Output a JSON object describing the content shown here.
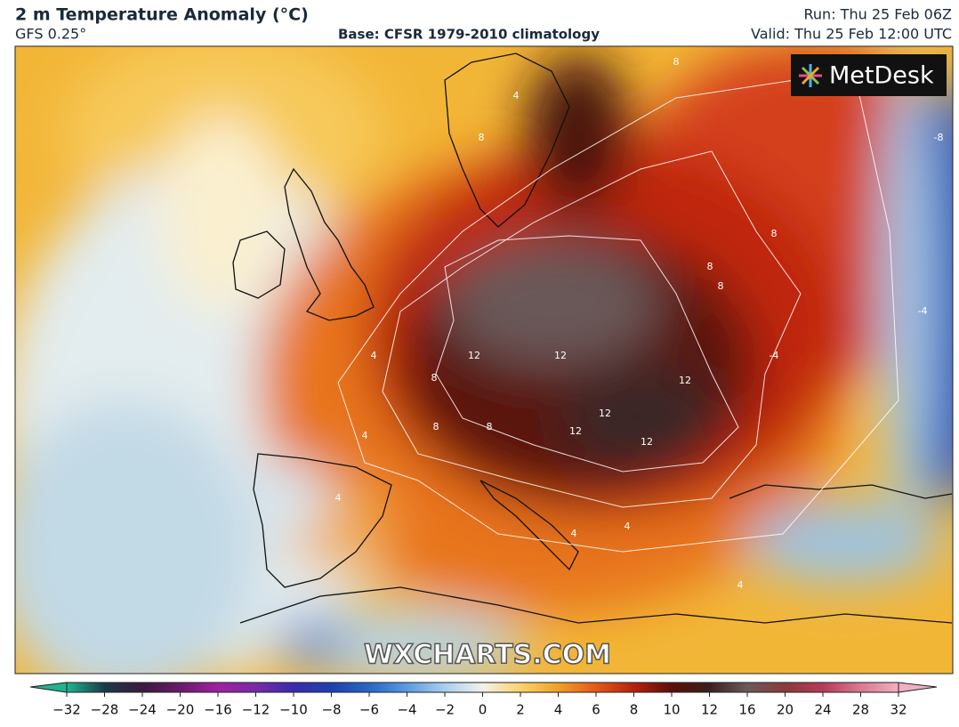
{
  "header": {
    "title": "2 m Temperature Anomaly (°C)",
    "model": "GFS 0.25°",
    "base": "Base: CFSR 1979-2010 climatology",
    "run": "Run: Thu 25 Feb 06Z",
    "valid": "Valid: Thu 25 Feb 12:00 UTC"
  },
  "logo": "MetDesk",
  "watermark": "WXCHARTS.COM",
  "contour_labels": [
    4,
    8,
    8,
    8,
    12,
    12,
    12,
    12,
    12,
    12,
    8,
    8,
    8,
    8,
    4,
    4,
    4,
    4,
    -4,
    -8,
    -4,
    4,
    4,
    8
  ],
  "colorbar": {
    "ticks": [
      {
        "value": -32,
        "label": "−32"
      },
      {
        "value": -28,
        "label": "−28"
      },
      {
        "value": -24,
        "label": "−24"
      },
      {
        "value": -20,
        "label": "−20"
      },
      {
        "value": -16,
        "label": "−16"
      },
      {
        "value": -12,
        "label": "−12"
      },
      {
        "value": -10,
        "label": "−10"
      },
      {
        "value": -8,
        "label": "−8"
      },
      {
        "value": -6,
        "label": "−6"
      },
      {
        "value": -4,
        "label": "−4"
      },
      {
        "value": -2,
        "label": "−2"
      },
      0,
      2,
      4,
      6,
      8,
      10,
      12,
      16,
      20,
      24,
      28,
      32
    ],
    "colors": [
      "#1fb58f",
      "#1a3a4a",
      "#3a1a40",
      "#6a1a6a",
      "#a020a0",
      "#7a2aa8",
      "#3a2ab0",
      "#1f3fb0",
      "#2a66c8",
      "#5b9be0",
      "#a9cfee",
      "#f3f1ea",
      "#f8d46a",
      "#f0a027",
      "#e35a16",
      "#b8200e",
      "#5a0f08",
      "#3a2020",
      "#6a5a5a",
      "#8a3a3a",
      "#b83a5a",
      "#d87a90",
      "#f0b0c0"
    ]
  }
}
